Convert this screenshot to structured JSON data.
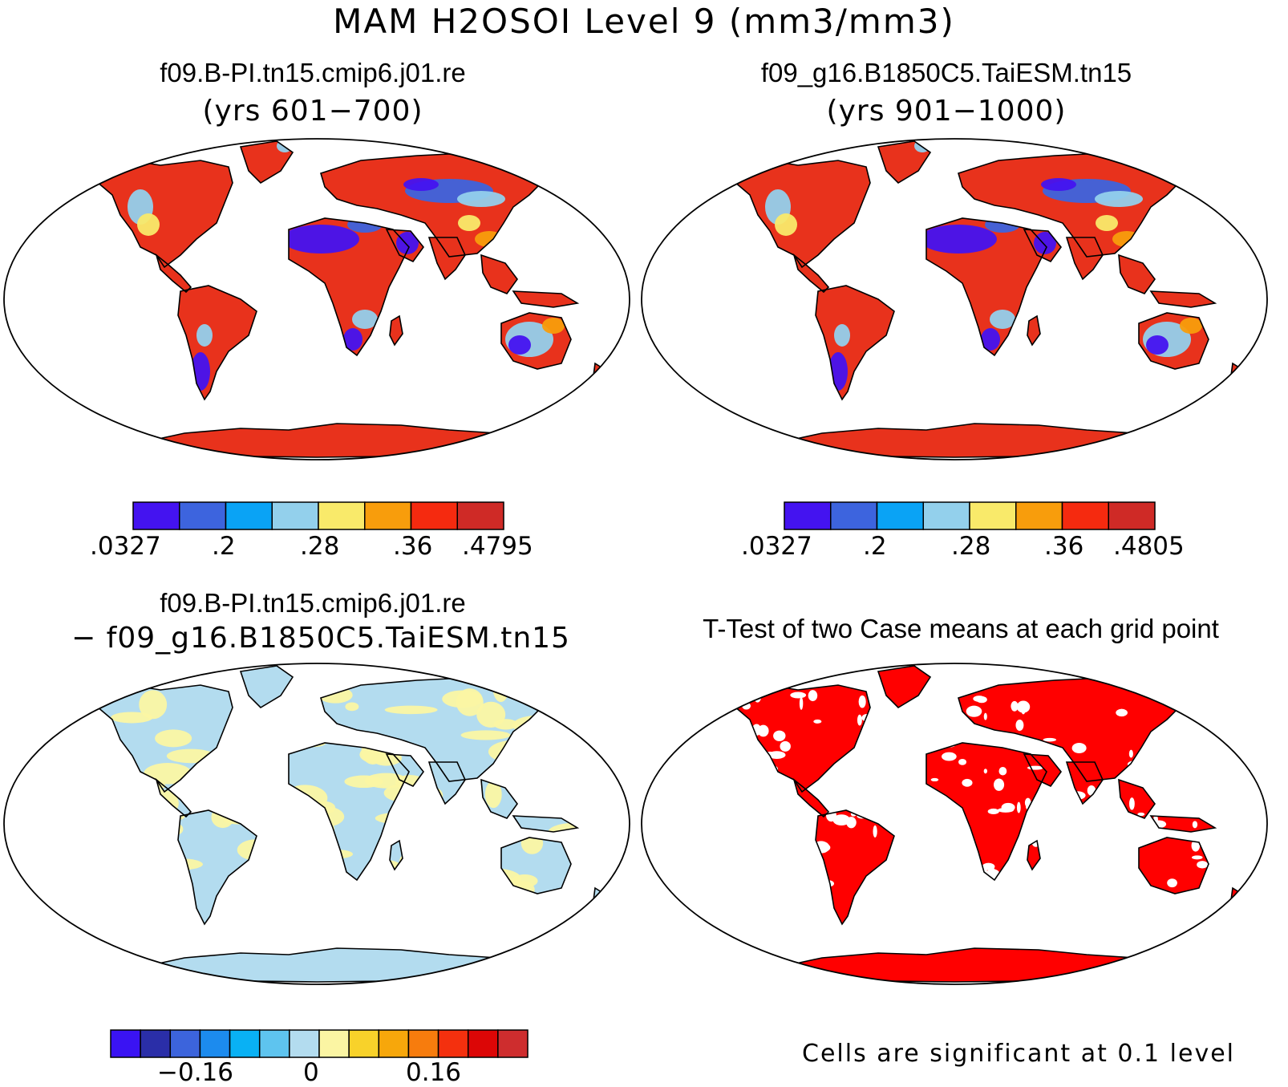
{
  "title": "MAM H2OSOI Level 9 (mm3/mm3)",
  "panels": {
    "case1": {
      "title": "f09.B-PI.tn15.cmip6.j01.re",
      "subtitle": "(yrs 601−700)"
    },
    "case2": {
      "title": "f09_g16.B1850C5.TaiESM.tn15",
      "subtitle": "(yrs 901−1000)"
    },
    "diff": {
      "title": "f09.B-PI.tn15.cmip6.j01.re",
      "subtitle": "− f09_g16.B1850C5.TaiESM.tn15"
    },
    "ttest": {
      "title": "T-Test of two Case means at each grid point",
      "note": "Cells are significant at 0.1 level"
    }
  },
  "colorbars": {
    "case1": {
      "colors": [
        "#4413f0",
        "#3d64de",
        "#0aa3f5",
        "#93d0ec",
        "#f9ea6a",
        "#f89d0c",
        "#f52a0f",
        "#cf2a26"
      ],
      "labels": [
        ".0327",
        ".2",
        ".28",
        ".36",
        ".4795"
      ]
    },
    "case2": {
      "colors": [
        "#4413f0",
        "#3d64de",
        "#0aa3f5",
        "#93d0ec",
        "#f9ea6a",
        "#f89d0c",
        "#f52a0f",
        "#cf2a26"
      ],
      "labels": [
        ".0327",
        ".2",
        ".28",
        ".36",
        ".4805"
      ]
    },
    "diff": {
      "colors": [
        "#3a13f3",
        "#2a2ea8",
        "#3c64dc",
        "#1c8bee",
        "#09b1f4",
        "#5ec4ef",
        "#b3dcef",
        "#fbf5a3",
        "#f8d22a",
        "#f7a70b",
        "#f77c0d",
        "#f4300e",
        "#dc0606",
        "#ce2d2e"
      ],
      "labels": [
        "−0.16",
        "0",
        "0.16"
      ]
    }
  },
  "map_colors": {
    "land_high": "#e8321c",
    "land_dry": "#4413f0",
    "land_mid": "#93d0ec",
    "diff_neg": "#b3dcef",
    "diff_pos": "#fbf5a3",
    "significant": "#ff0000"
  }
}
